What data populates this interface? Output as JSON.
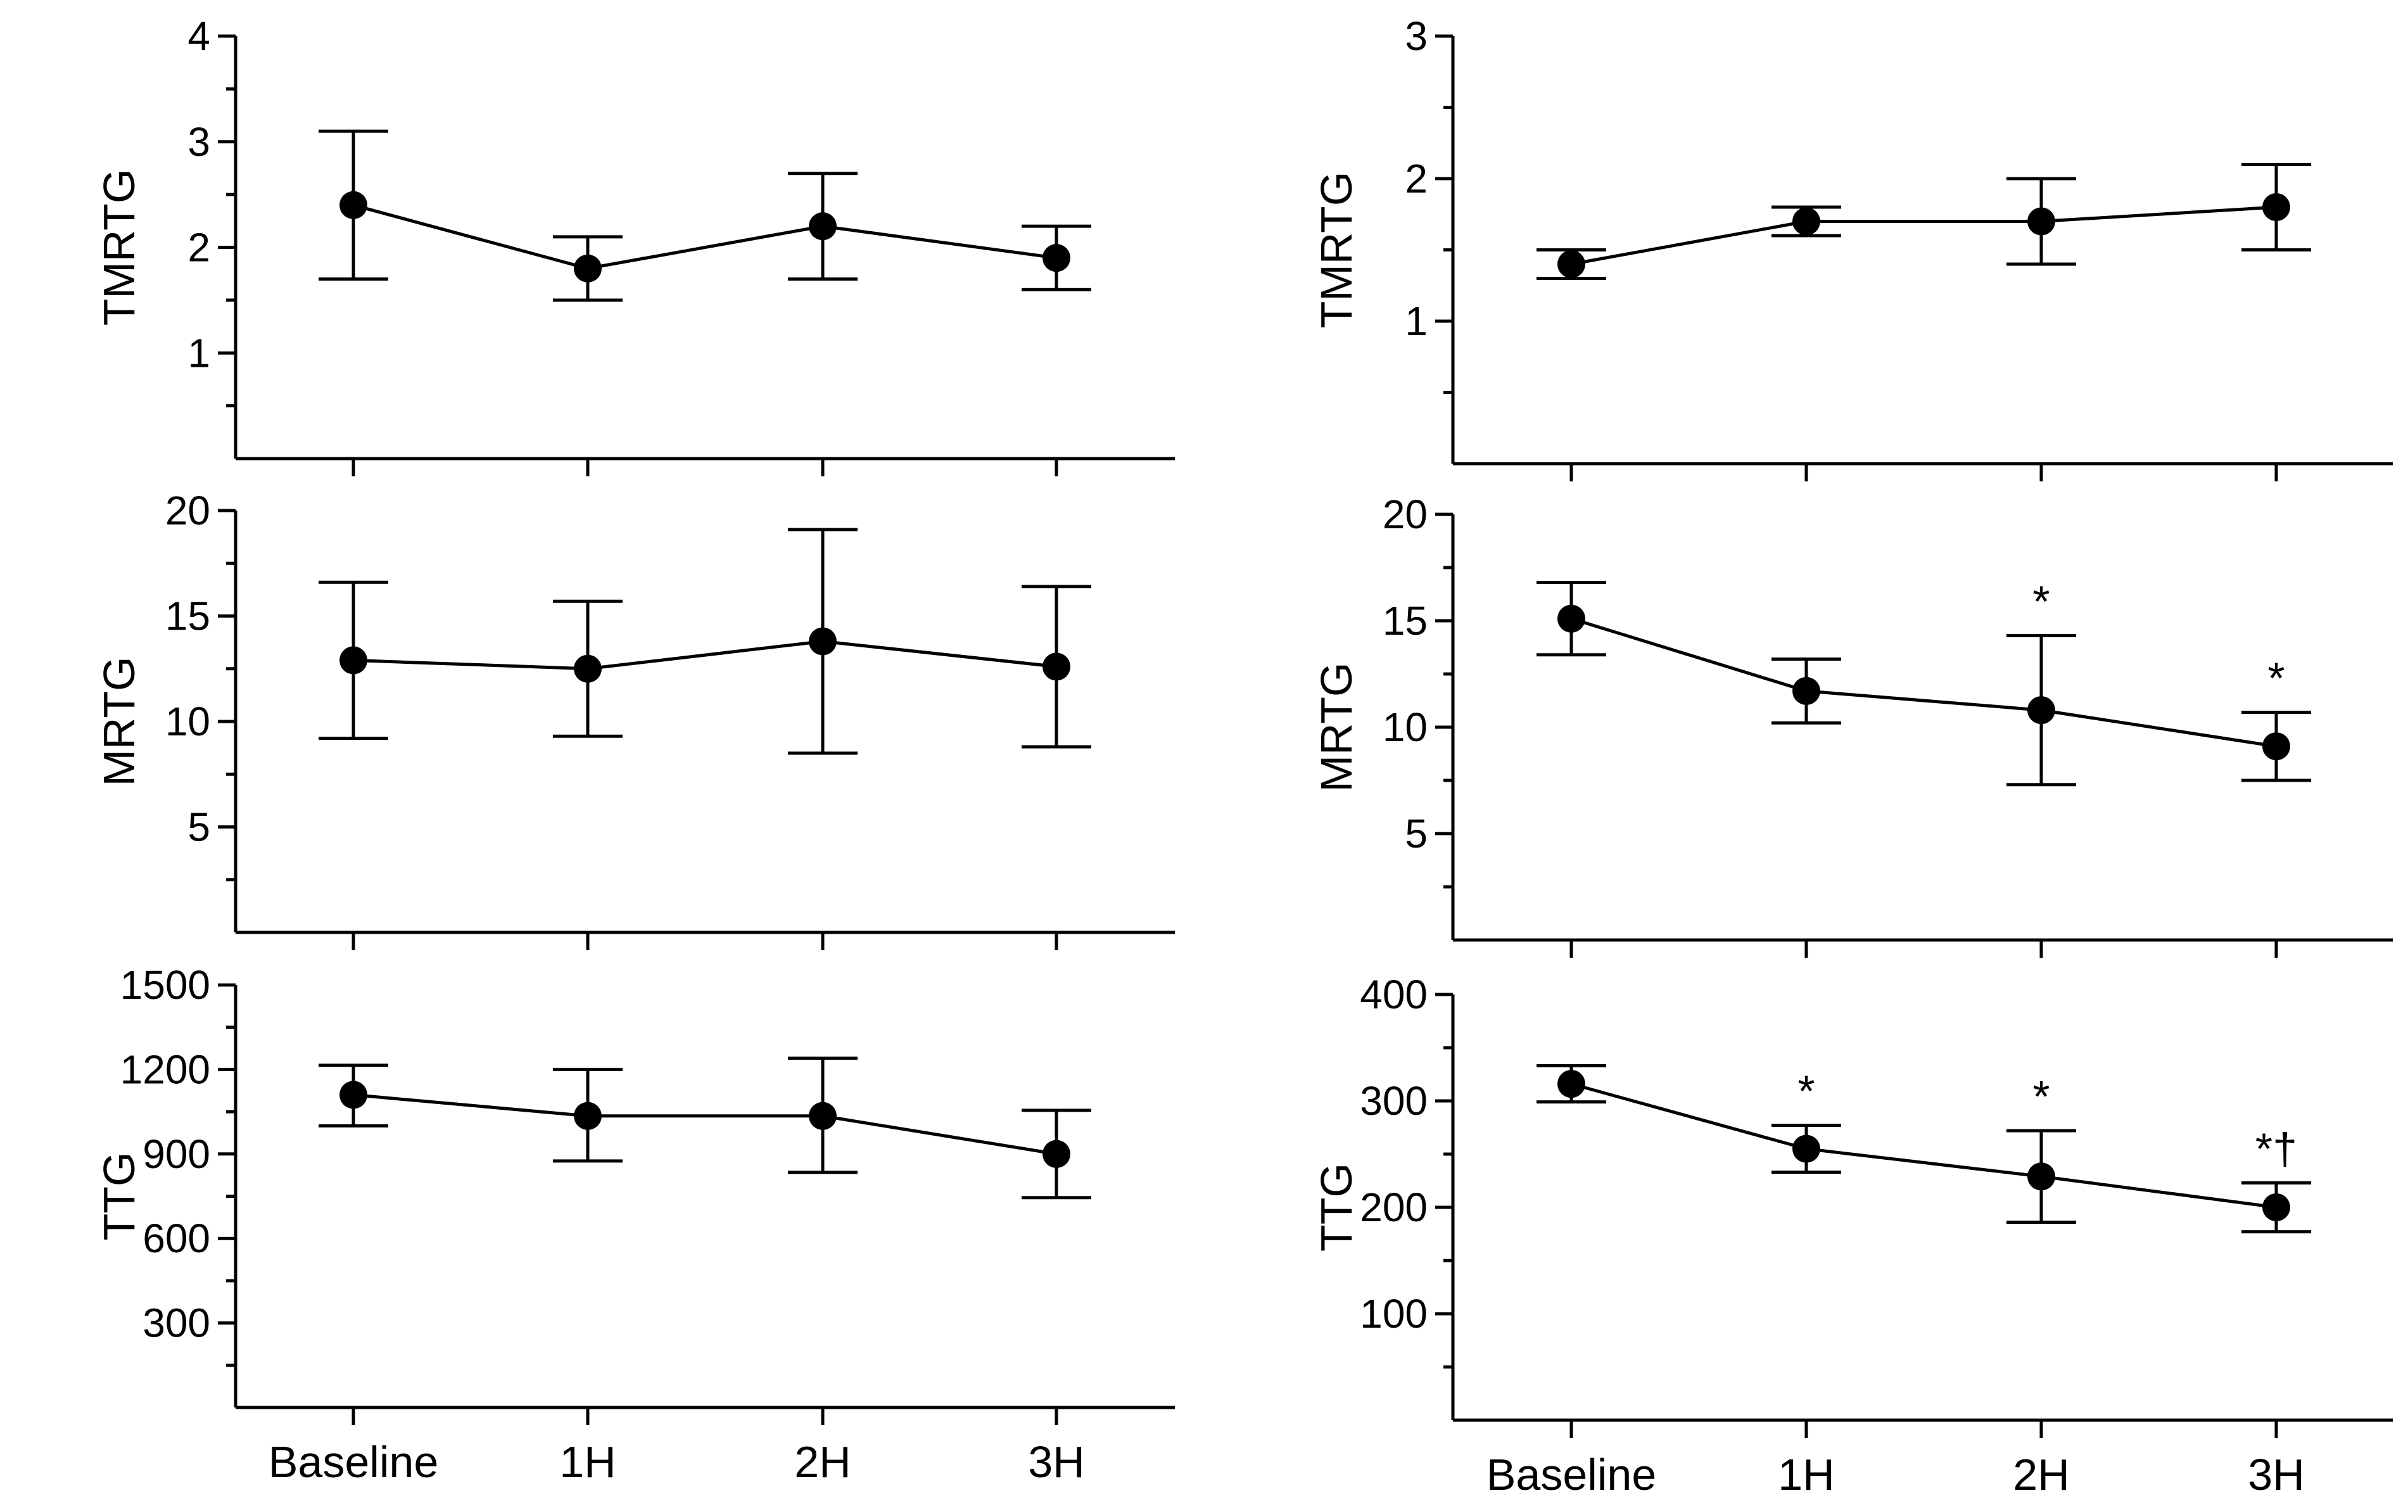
{
  "colors": {
    "ink": "#000000",
    "background": "#ffffff"
  },
  "chart_data": [
    {
      "type": "line",
      "panel": "left-top",
      "title": "",
      "xlabel": "",
      "ylabel": "TMRTG",
      "categories": [
        "Baseline",
        "1H",
        "2H",
        "3H"
      ],
      "ylim": [
        0,
        4
      ],
      "yticks": [
        1,
        2,
        3,
        4
      ],
      "series": [
        {
          "name": "TMRTG",
          "values": [
            2.4,
            1.8,
            2.2,
            1.9
          ],
          "err_low": [
            1.7,
            1.5,
            1.7,
            1.6
          ],
          "err_high": [
            3.1,
            2.1,
            2.7,
            2.2
          ]
        }
      ],
      "show_x_labels": false,
      "annotations": [
        "",
        "",
        "",
        ""
      ]
    },
    {
      "type": "line",
      "panel": "left-middle",
      "title": "",
      "xlabel": "",
      "ylabel": "MRTG",
      "categories": [
        "Baseline",
        "1H",
        "2H",
        "3H"
      ],
      "ylim": [
        0,
        20
      ],
      "yticks": [
        5,
        10,
        15,
        20
      ],
      "series": [
        {
          "name": "MRTG",
          "values": [
            12.9,
            12.5,
            13.8,
            12.6
          ],
          "err_low": [
            9.2,
            9.3,
            8.5,
            8.8
          ],
          "err_high": [
            16.6,
            15.7,
            19.1,
            16.4
          ]
        }
      ],
      "show_x_labels": false,
      "annotations": [
        "",
        "",
        "",
        ""
      ]
    },
    {
      "type": "line",
      "panel": "left-bottom",
      "title": "",
      "xlabel": "",
      "ylabel": "TTG",
      "categories": [
        "Baseline",
        "1H",
        "2H",
        "3H"
      ],
      "ylim": [
        0,
        1500
      ],
      "yticks": [
        300,
        600,
        900,
        1200,
        1500
      ],
      "series": [
        {
          "name": "TTG",
          "values": [
            1110,
            1035,
            1035,
            900
          ],
          "err_low": [
            1000,
            875,
            835,
            745
          ],
          "err_high": [
            1215,
            1200,
            1240,
            1055
          ]
        }
      ],
      "show_x_labels": true,
      "annotations": [
        "",
        "",
        "",
        ""
      ]
    },
    {
      "type": "line",
      "panel": "right-top",
      "title": "",
      "xlabel": "",
      "ylabel": "TMRTG",
      "categories": [
        "Baseline",
        "1H",
        "2H",
        "3H"
      ],
      "ylim": [
        0,
        3
      ],
      "yticks": [
        1,
        2,
        3
      ],
      "series": [
        {
          "name": "TMRTG",
          "values": [
            1.4,
            1.7,
            1.7,
            1.8
          ],
          "err_low": [
            1.3,
            1.6,
            1.4,
            1.5
          ],
          "err_high": [
            1.5,
            1.8,
            2.0,
            2.1
          ]
        }
      ],
      "show_x_labels": false,
      "annotations": [
        "",
        "",
        "",
        ""
      ]
    },
    {
      "type": "line",
      "panel": "right-middle",
      "title": "",
      "xlabel": "",
      "ylabel": "MRTG",
      "categories": [
        "Baseline",
        "1H",
        "2H",
        "3H"
      ],
      "ylim": [
        0,
        20
      ],
      "yticks": [
        5,
        10,
        15,
        20
      ],
      "series": [
        {
          "name": "MRTG",
          "values": [
            15.1,
            11.7,
            10.8,
            9.1
          ],
          "err_low": [
            13.4,
            10.2,
            7.3,
            7.5
          ],
          "err_high": [
            16.8,
            13.2,
            14.3,
            10.7
          ]
        }
      ],
      "show_x_labels": false,
      "annotations": [
        "",
        "",
        "*",
        "*"
      ]
    },
    {
      "type": "line",
      "panel": "right-bottom",
      "title": "",
      "xlabel": "",
      "ylabel": "TTG",
      "categories": [
        "Baseline",
        "1H",
        "2H",
        "3H"
      ],
      "ylim": [
        0,
        400
      ],
      "yticks": [
        100,
        200,
        300,
        400
      ],
      "series": [
        {
          "name": "TTG",
          "values": [
            316,
            255,
            229,
            200
          ],
          "err_low": [
            299,
            233,
            186,
            177
          ],
          "err_high": [
            333,
            277,
            272,
            223
          ]
        }
      ],
      "show_x_labels": true,
      "annotations": [
        "",
        "*",
        "*",
        "*†"
      ]
    }
  ]
}
